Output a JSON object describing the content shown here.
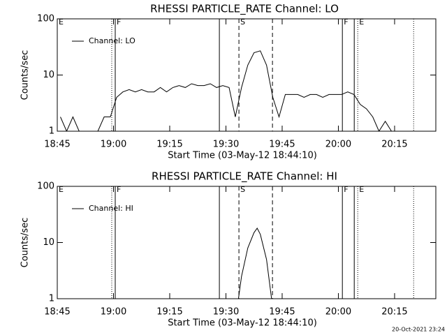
{
  "chart_data": [
    {
      "type": "line",
      "title": "RHESSI PARTICLE_RATE Channel: LO",
      "xlabel": "Start Time (03-May-12 18:44:10)",
      "ylabel": "Counts/sec",
      "x": [
        100,
        200,
        300,
        400,
        500,
        600,
        700,
        800,
        900,
        1000,
        1100,
        1200,
        1300,
        1400,
        1500,
        1600,
        1700,
        1800,
        1900,
        2000,
        2100,
        2200,
        2300,
        2400,
        2500,
        2600,
        2700,
        2800,
        2900,
        3000,
        3100,
        3200,
        3300,
        3400,
        3500,
        3600,
        3700,
        3800,
        3900,
        4000,
        4100,
        4200,
        4300,
        4400,
        4500,
        4600,
        4700,
        4800,
        4900,
        5000,
        5100,
        5200,
        5300,
        5400
      ],
      "series": [
        {
          "name": "Channel: LO",
          "color": "#000000",
          "values": [
            1.8,
            1,
            1.8,
            1,
            1,
            1,
            1,
            1.8,
            1.8,
            4,
            5,
            5.5,
            5,
            5.5,
            5,
            5,
            6,
            5,
            6,
            6.5,
            6,
            7,
            6.5,
            6.5,
            7,
            6,
            6.5,
            6,
            1.8,
            6,
            15,
            25,
            27,
            15,
            4,
            1.8,
            4.5,
            4.5,
            4.5,
            4,
            4.5,
            4.5,
            4,
            4.5,
            4.5,
            4.5,
            5,
            4.5,
            3,
            2.5,
            1.8,
            1,
            1.5,
            1
          ]
        }
      ],
      "xlim": [
        50,
        6110
      ],
      "xticks": [
        {
          "value": 50,
          "label": "18:45"
        },
        {
          "value": 950,
          "label": "19:00"
        },
        {
          "value": 1850,
          "label": "19:15"
        },
        {
          "value": 2750,
          "label": "19:30"
        },
        {
          "value": 3650,
          "label": "19:45"
        },
        {
          "value": 4550,
          "label": "20:00"
        },
        {
          "value": 5450,
          "label": "20:15"
        }
      ],
      "ylim": [
        1,
        100
      ],
      "yticks": [
        1,
        10,
        100
      ],
      "log_y": true,
      "legend": "upper left",
      "vlines": [
        {
          "x": 922,
          "style": "dotted"
        },
        {
          "x": 978,
          "style": "solid"
        },
        {
          "x": 2645,
          "style": "solid"
        },
        {
          "x": 2958,
          "style": "dashed"
        },
        {
          "x": 3495,
          "style": "dashed"
        },
        {
          "x": 4614,
          "style": "solid"
        },
        {
          "x": 4804,
          "style": "solid"
        },
        {
          "x": 4860,
          "style": "dotted"
        },
        {
          "x": 5755,
          "style": "dotted"
        }
      ],
      "annotations": [
        {
          "x": 50,
          "text": "E"
        },
        {
          "x": 978,
          "text": "F"
        },
        {
          "x": 2958,
          "text": "S"
        },
        {
          "x": 4614,
          "text": "F"
        },
        {
          "x": 4860,
          "text": "E"
        }
      ]
    },
    {
      "type": "line",
      "title": "RHESSI PARTICLE_RATE Channel: HI",
      "xlabel": "Start Time (03-May-12 18:44:10)",
      "ylabel": "Counts/sec",
      "x": [
        2950,
        3000,
        3100,
        3200,
        3250,
        3300,
        3400,
        3480
      ],
      "series": [
        {
          "name": "Channel: HI",
          "color": "#000000",
          "values": [
            1,
            2.5,
            8,
            15,
            18,
            14,
            5,
            1
          ]
        }
      ],
      "xlim": [
        50,
        6110
      ],
      "xticks": [
        {
          "value": 50,
          "label": "18:45"
        },
        {
          "value": 950,
          "label": "19:00"
        },
        {
          "value": 1850,
          "label": "19:15"
        },
        {
          "value": 2750,
          "label": "19:30"
        },
        {
          "value": 3650,
          "label": "19:45"
        },
        {
          "value": 4550,
          "label": "20:00"
        },
        {
          "value": 5450,
          "label": "20:15"
        }
      ],
      "ylim": [
        1,
        100
      ],
      "yticks": [
        1,
        10,
        100
      ],
      "log_y": true,
      "legend": "upper left",
      "vlines": [
        {
          "x": 922,
          "style": "dotted"
        },
        {
          "x": 978,
          "style": "solid"
        },
        {
          "x": 2645,
          "style": "solid"
        },
        {
          "x": 2958,
          "style": "dashed"
        },
        {
          "x": 3495,
          "style": "dashed"
        },
        {
          "x": 4614,
          "style": "solid"
        },
        {
          "x": 4804,
          "style": "solid"
        },
        {
          "x": 4860,
          "style": "dotted"
        },
        {
          "x": 5755,
          "style": "dotted"
        }
      ],
      "annotations": [
        {
          "x": 50,
          "text": "E"
        },
        {
          "x": 978,
          "text": "F"
        },
        {
          "x": 2958,
          "text": "S"
        },
        {
          "x": 4614,
          "text": "F"
        },
        {
          "x": 4860,
          "text": "E"
        }
      ]
    }
  ],
  "footer": "20-Oct-2021 23:24"
}
